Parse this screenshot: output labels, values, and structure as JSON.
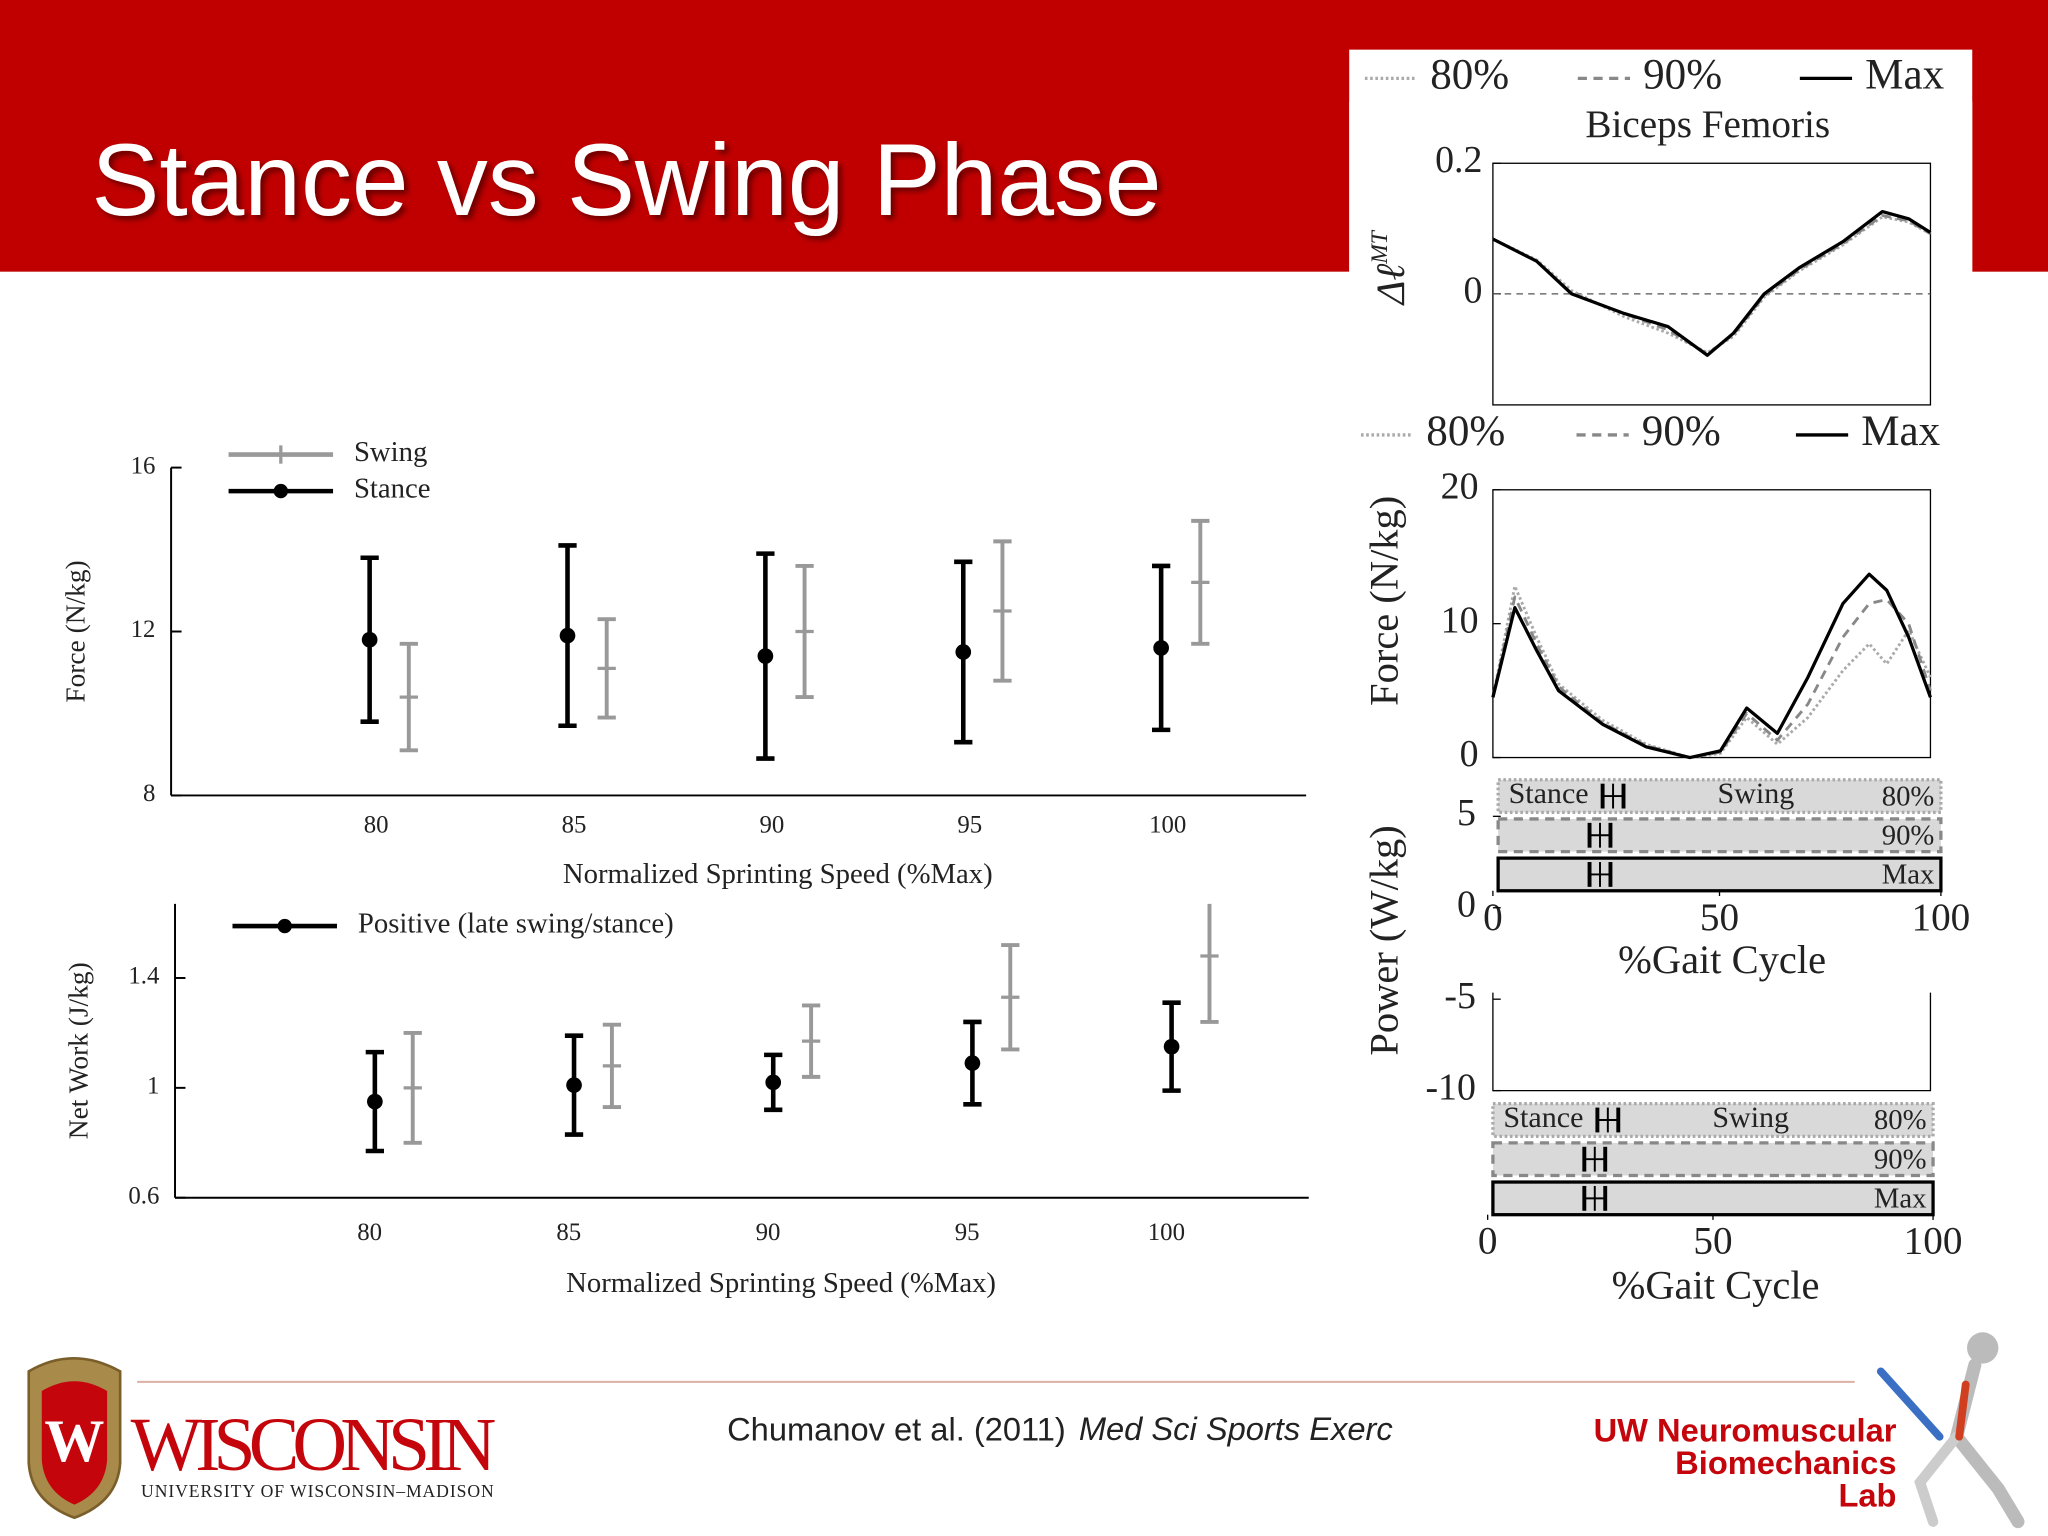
{
  "header": {
    "title": "Stance vs Swing Phase"
  },
  "footer": {
    "citation": "Chumanov et al. (2011)",
    "journal": "Med Sci Sports  Exerc",
    "university": "WISCONSIN",
    "university_sub": "UNIVERSITY OF WISCONSIN–MADISON",
    "crest_letter": "W",
    "lab": [
      "UW Neuromuscular",
      "Biomechanics",
      "Lab"
    ]
  },
  "chart_data": [
    {
      "type": "errorbar",
      "ylabel": "Force (N/kg)",
      "xlabel": "Normalized Sprinting Speed (%Max)",
      "categories": [
        "80",
        "85",
        "90",
        "95",
        "100"
      ],
      "ylim": [
        8,
        16
      ],
      "yticks": [
        8,
        12,
        16
      ],
      "series": [
        {
          "name": "Swing",
          "color": "#999999",
          "values": [
            10.4,
            11.1,
            12.0,
            12.5,
            13.2
          ],
          "errors": [
            1.3,
            1.2,
            1.6,
            1.7,
            1.5
          ]
        },
        {
          "name": "Stance",
          "color": "#000000",
          "values": [
            11.8,
            11.9,
            11.4,
            11.5,
            11.6
          ],
          "errors": [
            2.0,
            2.2,
            2.5,
            2.2,
            2.0
          ]
        }
      ]
    },
    {
      "type": "errorbar",
      "ylabel": "Net Work (J/kg)",
      "xlabel": "Normalized Sprinting Speed (%Max)",
      "categories": [
        "80",
        "85",
        "90",
        "95",
        "100"
      ],
      "ylim": [
        0.6,
        1.67
      ],
      "yticks": [
        0.6,
        1,
        1.4
      ],
      "series": [
        {
          "color": "#999999",
          "values": [
            1.0,
            1.08,
            1.17,
            1.33,
            1.48
          ],
          "errors": [
            0.2,
            0.15,
            0.13,
            0.19,
            0.24
          ]
        },
        {
          "name": "Positive (late swing/stance)",
          "color": "#000000",
          "values": [
            0.95,
            1.01,
            1.02,
            1.09,
            1.15
          ],
          "errors": [
            0.18,
            0.18,
            0.1,
            0.15,
            0.16
          ]
        }
      ]
    },
    {
      "type": "line",
      "title": "Biceps Femoris",
      "ylabel": "Δℓ",
      "ylabel_sup": "MT",
      "xlim": [
        0,
        100
      ],
      "ylim": [
        -0.17,
        0.2
      ],
      "yticks": [
        0,
        0.2
      ],
      "zero_line": true,
      "x": [
        0,
        10,
        18,
        30,
        40,
        49,
        55,
        62,
        70,
        80,
        89,
        95,
        100
      ],
      "series": [
        {
          "name": "80%",
          "color": "#aaaaaa",
          "style": "dotted",
          "values": [
            0.084,
            0.052,
            0.005,
            -0.035,
            -0.06,
            -0.09,
            -0.065,
            -0.005,
            0.035,
            0.075,
            0.118,
            0.11,
            0.092
          ]
        },
        {
          "name": "90%",
          "color": "#888888",
          "style": "dashed",
          "values": [
            0.084,
            0.05,
            0,
            -0.03,
            -0.055,
            -0.092,
            -0.062,
            -0.003,
            0.037,
            0.077,
            0.12,
            0.112,
            0.092
          ]
        },
        {
          "name": "Max",
          "color": "#000000",
          "style": "solid",
          "values": [
            0.084,
            0.05,
            0,
            -0.03,
            -0.05,
            -0.094,
            -0.06,
            0,
            0.04,
            0.08,
            0.126,
            0.115,
            0.094
          ]
        }
      ]
    },
    {
      "type": "line",
      "ylabel": "Force (N/kg)",
      "xlabel": "%Gait Cycle",
      "xlim": [
        0,
        100
      ],
      "xticks": [
        0,
        50,
        100
      ],
      "ylim": [
        0,
        20
      ],
      "yticks": [
        0,
        10,
        20
      ],
      "x": [
        0,
        5,
        10,
        15,
        25,
        35,
        45,
        52,
        58,
        65,
        72,
        80,
        86,
        90,
        95,
        100
      ],
      "series": [
        {
          "name": "80%",
          "color": "#aaaaaa",
          "style": "dotted",
          "values": [
            4.5,
            12.8,
            9,
            5.5,
            2.8,
            1,
            0,
            0.3,
            3,
            1,
            3,
            6.5,
            8.5,
            7,
            9.5,
            6
          ]
        },
        {
          "name": "90%",
          "color": "#888888",
          "style": "dashed",
          "values": [
            4.5,
            12,
            8.5,
            5.3,
            2.6,
            0.9,
            0,
            0.4,
            3.3,
            1.3,
            4,
            9,
            11.5,
            11.8,
            10,
            5
          ]
        },
        {
          "name": "Max",
          "color": "#000000",
          "style": "solid",
          "values": [
            4.5,
            11.2,
            8,
            5,
            2.5,
            0.8,
            0,
            0.5,
            3.7,
            1.8,
            6,
            11.5,
            13.7,
            12.5,
            9,
            4.5
          ]
        }
      ],
      "phase_labels": [
        "Stance",
        "Swing"
      ],
      "bar_labels": [
        "80%",
        "90%",
        "Max"
      ]
    },
    {
      "type": "line",
      "ylabel": "Power (W/kg)",
      "xlabel": "%Gait Cycle",
      "xlim": [
        0,
        100
      ],
      "xticks": [
        0,
        50,
        100
      ],
      "ylim": [
        -10,
        5
      ],
      "yticks": [
        5,
        0,
        -5,
        -10
      ],
      "series": [],
      "phase_labels": [
        "Stance",
        "Swing"
      ],
      "bar_labels": [
        "80%",
        "90%",
        "Max"
      ]
    }
  ]
}
